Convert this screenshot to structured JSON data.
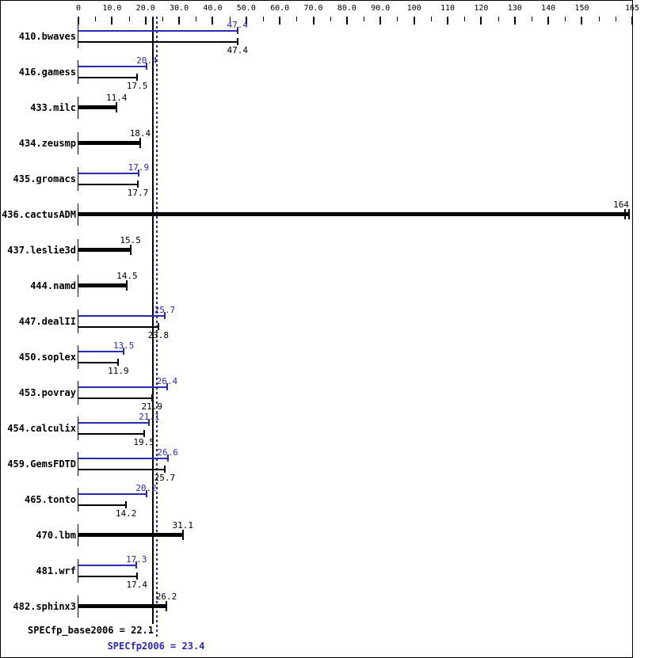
{
  "chart_data": {
    "type": "bar",
    "orientation": "horizontal",
    "title": "",
    "xlabel": "",
    "ylabel": "",
    "grid": false,
    "axis": {
      "min": 0,
      "max": 165,
      "minor_step": 5,
      "labels": [
        {
          "v": 0,
          "t": "0"
        },
        {
          "v": 10,
          "t": "10.0"
        },
        {
          "v": 20,
          "t": "20.0"
        },
        {
          "v": 30,
          "t": "30.0"
        },
        {
          "v": 40,
          "t": "40.0"
        },
        {
          "v": 50,
          "t": "50.0"
        },
        {
          "v": 60,
          "t": "60.0"
        },
        {
          "v": 70,
          "t": "70.0"
        },
        {
          "v": 80,
          "t": "80.0"
        },
        {
          "v": 90,
          "t": "90.0"
        },
        {
          "v": 100,
          "t": "100"
        },
        {
          "v": 110,
          "t": "110"
        },
        {
          "v": 120,
          "t": "120"
        },
        {
          "v": 130,
          "t": "130"
        },
        {
          "v": 140,
          "t": "140"
        },
        {
          "v": 150,
          "t": "150"
        },
        {
          "v": 165,
          "t": "165"
        }
      ]
    },
    "benchmarks": [
      {
        "name": "410.bwaves",
        "peak": 47.4,
        "peak_label": "47.4",
        "base": 47.4,
        "base_label": "47.4"
      },
      {
        "name": "416.gamess",
        "peak": 20.4,
        "peak_label": "20.4",
        "base": 17.5,
        "base_label": "17.5"
      },
      {
        "name": "433.milc",
        "single": 11.4,
        "single_label": "11.4"
      },
      {
        "name": "434.zeusmp",
        "single": 18.4,
        "single_label": "18.4"
      },
      {
        "name": "435.gromacs",
        "peak": 17.9,
        "peak_label": "17.9",
        "base": 17.7,
        "base_label": "17.7"
      },
      {
        "name": "436.cactusADM",
        "single": 164,
        "single_label": "164",
        "double_cap": true
      },
      {
        "name": "437.leslie3d",
        "single": 15.5,
        "single_label": "15.5"
      },
      {
        "name": "444.namd",
        "single": 14.5,
        "single_label": "14.5"
      },
      {
        "name": "447.dealII",
        "peak": 25.7,
        "peak_label": "25.7",
        "base": 23.8,
        "base_label": "23.8"
      },
      {
        "name": "450.soplex",
        "peak": 13.5,
        "peak_label": "13.5",
        "base": 11.9,
        "base_label": "11.9"
      },
      {
        "name": "453.povray",
        "peak": 26.4,
        "peak_label": "26.4",
        "base": 21.9,
        "base_label": "21.9"
      },
      {
        "name": "454.calculix",
        "peak": 21.1,
        "peak_label": "21.1",
        "base": 19.5,
        "base_label": "19.5"
      },
      {
        "name": "459.GemsFDTD",
        "peak": 26.6,
        "peak_label": "26.6",
        "base": 25.7,
        "base_label": "25.7"
      },
      {
        "name": "465.tonto",
        "peak": 20.2,
        "peak_label": "20.2",
        "base": 14.2,
        "base_label": "14.2"
      },
      {
        "name": "470.lbm",
        "single": 31.1,
        "single_label": "31.1"
      },
      {
        "name": "481.wrf",
        "peak": 17.3,
        "peak_label": "17.3",
        "base": 17.4,
        "base_label": "17.4"
      },
      {
        "name": "482.sphinx3",
        "single": 26.2,
        "single_label": "26.2"
      }
    ],
    "reference_lines": [
      {
        "name": "base-mean",
        "value": 22.1,
        "style": "solid"
      },
      {
        "name": "peak-mean",
        "value": 23.4,
        "style": "dotted"
      }
    ],
    "base_mean": {
      "text": "SPECfp_base2006 = 22.1",
      "value": 22.1
    },
    "peak_mean": {
      "text": "SPECfp2006 = 23.4",
      "value": 23.4
    },
    "colors": {
      "base": "#000000",
      "peak": "#2a2ab0",
      "background": "#ffffff"
    }
  }
}
